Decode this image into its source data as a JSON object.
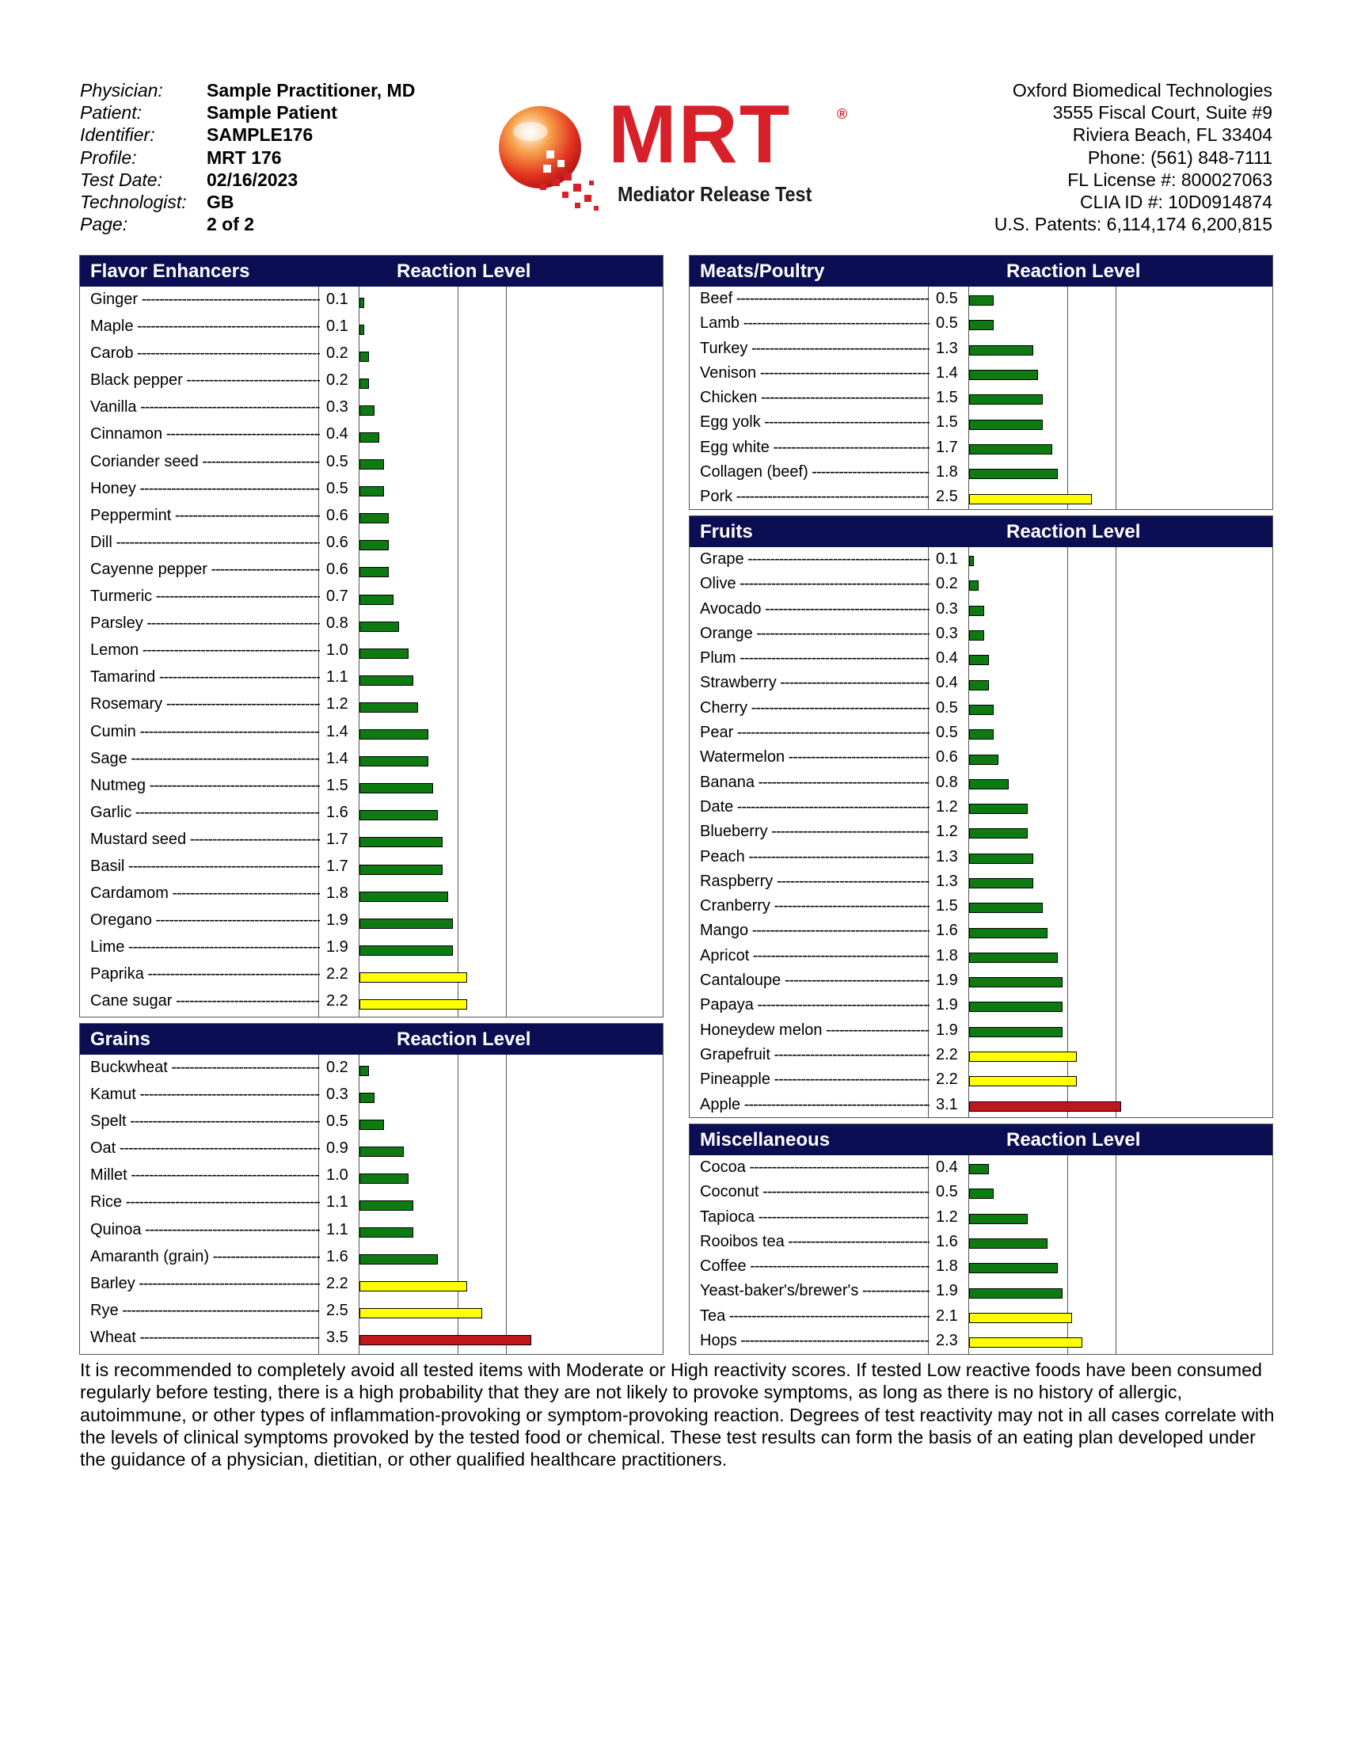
{
  "header": {
    "left": [
      {
        "label": "Physician:",
        "value": "Sample Practitioner, MD"
      },
      {
        "label": "Patient:",
        "value": "Sample Patient"
      },
      {
        "label": "Identifier:",
        "value": "SAMPLE176"
      },
      {
        "label": "Profile:",
        "value": "MRT 176"
      },
      {
        "label": "Test Date:",
        "value": "02/16/2023"
      },
      {
        "label": "Technologist:",
        "value": "GB"
      },
      {
        "label": "Page:",
        "value": "2 of 2"
      }
    ],
    "right": [
      "Oxford Biomedical Technologies",
      "3555 Fiscal Court, Suite #9",
      "Riviera Beach, FL 33404",
      "Phone: (561) 848-7111",
      "FL License #: 800027063",
      "CLIA ID #: 10D0914874",
      "U.S. Patents: 6,114,174 6,200,815"
    ]
  },
  "logo": {
    "brand": "MRT",
    "registered": "®",
    "subtitle": "Mediator Release Test",
    "red": "#d8202a",
    "orange": "#f08a1c"
  },
  "reaction_header": "Reaction Level",
  "scale_max": 4.0,
  "colors": {
    "green": "#0d7a12",
    "yellow": "#ffff00",
    "red": "#c0171c",
    "header": "#0b0e52"
  },
  "panels": [
    {
      "id": "flavor",
      "title": "Flavor Enhancers",
      "items": [
        {
          "name": "Ginger",
          "value": "0.1",
          "level": "green"
        },
        {
          "name": "Maple",
          "value": "0.1",
          "level": "green"
        },
        {
          "name": "Carob",
          "value": "0.2",
          "level": "green"
        },
        {
          "name": "Black pepper",
          "value": "0.2",
          "level": "green"
        },
        {
          "name": "Vanilla",
          "value": "0.3",
          "level": "green"
        },
        {
          "name": "Cinnamon",
          "value": "0.4",
          "level": "green"
        },
        {
          "name": "Coriander seed",
          "value": "0.5",
          "level": "green"
        },
        {
          "name": "Honey",
          "value": "0.5",
          "level": "green"
        },
        {
          "name": "Peppermint",
          "value": "0.6",
          "level": "green"
        },
        {
          "name": "Dill",
          "value": "0.6",
          "level": "green"
        },
        {
          "name": "Cayenne pepper",
          "value": "0.6",
          "level": "green"
        },
        {
          "name": "Turmeric",
          "value": "0.7",
          "level": "green"
        },
        {
          "name": "Parsley",
          "value": "0.8",
          "level": "green"
        },
        {
          "name": "Lemon",
          "value": "1.0",
          "level": "green"
        },
        {
          "name": "Tamarind",
          "value": "1.1",
          "level": "green"
        },
        {
          "name": "Rosemary",
          "value": "1.2",
          "level": "green"
        },
        {
          "name": "Cumin",
          "value": "1.4",
          "level": "green"
        },
        {
          "name": "Sage",
          "value": "1.4",
          "level": "green"
        },
        {
          "name": "Nutmeg",
          "value": "1.5",
          "level": "green"
        },
        {
          "name": "Garlic",
          "value": "1.6",
          "level": "green"
        },
        {
          "name": "Mustard seed",
          "value": "1.7",
          "level": "green"
        },
        {
          "name": "Basil",
          "value": "1.7",
          "level": "green"
        },
        {
          "name": "Cardamom",
          "value": "1.8",
          "level": "green"
        },
        {
          "name": "Oregano",
          "value": "1.9",
          "level": "green"
        },
        {
          "name": "Lime",
          "value": "1.9",
          "level": "green"
        },
        {
          "name": "Paprika",
          "value": "2.2",
          "level": "yellow"
        },
        {
          "name": "Cane sugar",
          "value": "2.2",
          "level": "yellow"
        }
      ]
    },
    {
      "id": "grains",
      "title": "Grains",
      "items": [
        {
          "name": "Buckwheat",
          "value": "0.2",
          "level": "green"
        },
        {
          "name": "Kamut",
          "value": "0.3",
          "level": "green"
        },
        {
          "name": "Spelt",
          "value": "0.5",
          "level": "green"
        },
        {
          "name": "Oat",
          "value": "0.9",
          "level": "green"
        },
        {
          "name": "Millet",
          "value": "1.0",
          "level": "green"
        },
        {
          "name": "Rice",
          "value": "1.1",
          "level": "green"
        },
        {
          "name": "Quinoa",
          "value": "1.1",
          "level": "green"
        },
        {
          "name": "Amaranth (grain)",
          "value": "1.6",
          "level": "green"
        },
        {
          "name": "Barley",
          "value": "2.2",
          "level": "yellow"
        },
        {
          "name": "Rye",
          "value": "2.5",
          "level": "yellow"
        },
        {
          "name": "Wheat",
          "value": "3.5",
          "level": "red"
        }
      ]
    },
    {
      "id": "meats",
      "title": "Meats/Poultry",
      "items": [
        {
          "name": "Beef",
          "value": "0.5",
          "level": "green"
        },
        {
          "name": "Lamb",
          "value": "0.5",
          "level": "green"
        },
        {
          "name": "Turkey",
          "value": "1.3",
          "level": "green"
        },
        {
          "name": "Venison",
          "value": "1.4",
          "level": "green"
        },
        {
          "name": "Chicken",
          "value": "1.5",
          "level": "green"
        },
        {
          "name": "Egg yolk",
          "value": "1.5",
          "level": "green"
        },
        {
          "name": "Egg white",
          "value": "1.7",
          "level": "green"
        },
        {
          "name": "Collagen (beef)",
          "value": "1.8",
          "level": "green"
        },
        {
          "name": "Pork",
          "value": "2.5",
          "level": "yellow"
        }
      ]
    },
    {
      "id": "fruits",
      "title": "Fruits",
      "items": [
        {
          "name": "Grape",
          "value": "0.1",
          "level": "green"
        },
        {
          "name": "Olive",
          "value": "0.2",
          "level": "green"
        },
        {
          "name": "Avocado",
          "value": "0.3",
          "level": "green"
        },
        {
          "name": "Orange",
          "value": "0.3",
          "level": "green"
        },
        {
          "name": "Plum",
          "value": "0.4",
          "level": "green"
        },
        {
          "name": "Strawberry",
          "value": "0.4",
          "level": "green"
        },
        {
          "name": "Cherry",
          "value": "0.5",
          "level": "green"
        },
        {
          "name": "Pear",
          "value": "0.5",
          "level": "green"
        },
        {
          "name": "Watermelon",
          "value": "0.6",
          "level": "green"
        },
        {
          "name": "Banana",
          "value": "0.8",
          "level": "green"
        },
        {
          "name": "Date",
          "value": "1.2",
          "level": "green"
        },
        {
          "name": "Blueberry",
          "value": "1.2",
          "level": "green"
        },
        {
          "name": "Peach",
          "value": "1.3",
          "level": "green"
        },
        {
          "name": "Raspberry",
          "value": "1.3",
          "level": "green"
        },
        {
          "name": "Cranberry",
          "value": "1.5",
          "level": "green"
        },
        {
          "name": "Mango",
          "value": "1.6",
          "level": "green"
        },
        {
          "name": "Apricot",
          "value": "1.8",
          "level": "green"
        },
        {
          "name": "Cantaloupe",
          "value": "1.9",
          "level": "green"
        },
        {
          "name": "Papaya",
          "value": "1.9",
          "level": "green"
        },
        {
          "name": "Honeydew melon",
          "value": "1.9",
          "level": "green"
        },
        {
          "name": "Grapefruit",
          "value": "2.2",
          "level": "yellow"
        },
        {
          "name": "Pineapple",
          "value": "2.2",
          "level": "yellow"
        },
        {
          "name": "Apple",
          "value": "3.1",
          "level": "red"
        }
      ]
    },
    {
      "id": "misc",
      "title": "Miscellaneous",
      "items": [
        {
          "name": "Cocoa",
          "value": "0.4",
          "level": "green"
        },
        {
          "name": "Coconut",
          "value": "0.5",
          "level": "green"
        },
        {
          "name": "Tapioca",
          "value": "1.2",
          "level": "green"
        },
        {
          "name": "Rooibos tea",
          "value": "1.6",
          "level": "green"
        },
        {
          "name": "Coffee",
          "value": "1.8",
          "level": "green"
        },
        {
          "name": "Yeast-baker's/brewer's",
          "value": "1.9",
          "level": "green"
        },
        {
          "name": "Tea",
          "value": "2.1",
          "level": "yellow"
        },
        {
          "name": "Hops",
          "value": "2.3",
          "level": "yellow"
        }
      ]
    }
  ],
  "footer": "It is recommended to completely avoid all tested items with Moderate or High reactivity scores. If tested Low reactive foods have been consumed regularly before testing, there is a high probability that they are not likely to provoke symptoms, as long as there is no history of allergic, autoimmune, or other types of inflammation-provoking or symptom-provoking reaction. Degrees of test reactivity may not in all cases correlate with the levels of clinical symptoms provoked by the tested food or chemical. These test results can form the basis of an eating plan developed under the guidance of a physician, dietitian, or other qualified healthcare practitioners."
}
